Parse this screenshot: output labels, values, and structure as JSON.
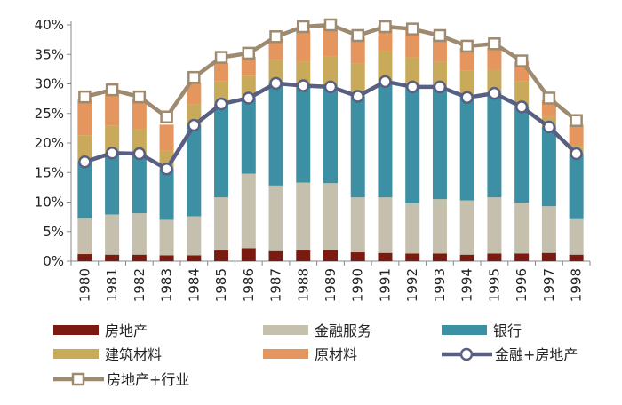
{
  "chart_data": {
    "type": "bar",
    "stacked": true,
    "categories": [
      "1980",
      "1981",
      "1982",
      "1983",
      "1984",
      "1985",
      "1986",
      "1987",
      "1988",
      "1989",
      "1990",
      "1991",
      "1992",
      "1993",
      "1994",
      "1995",
      "1996",
      "1997",
      "1998"
    ],
    "y_ticks": [
      "0%",
      "5%",
      "10%",
      "15%",
      "20%",
      "25%",
      "30%",
      "35%",
      "40%"
    ],
    "ylim": [
      0,
      40
    ],
    "series": [
      {
        "name": "房地产",
        "kind": "bar",
        "color": "#7b1a10",
        "values": [
          1.2,
          1.1,
          1.1,
          1.0,
          1.0,
          1.8,
          2.2,
          1.7,
          1.8,
          1.9,
          1.5,
          1.4,
          1.3,
          1.3,
          1.1,
          1.3,
          1.3,
          1.4,
          1.1
        ]
      },
      {
        "name": "金融服务",
        "kind": "bar",
        "color": "#c4c0ad",
        "values": [
          6.0,
          6.8,
          7.0,
          6.0,
          6.6,
          9.0,
          12.6,
          11.1,
          11.5,
          11.3,
          9.3,
          9.4,
          8.5,
          9.2,
          9.2,
          9.5,
          8.6,
          7.9,
          6.0
        ]
      },
      {
        "name": "银行",
        "kind": "bar",
        "color": "#3d8fa3",
        "values": [
          9.6,
          10.4,
          10.1,
          8.6,
          15.4,
          15.8,
          12.8,
          17.3,
          16.4,
          16.3,
          17.1,
          19.6,
          19.7,
          19.0,
          17.4,
          17.6,
          16.2,
          13.4,
          11.1
        ]
      },
      {
        "name": "建筑材料",
        "kind": "bar",
        "color": "#c9aa5a",
        "values": [
          4.5,
          4.6,
          4.2,
          3.1,
          3.6,
          3.9,
          3.8,
          4.0,
          4.0,
          5.1,
          5.5,
          5.1,
          5.0,
          4.2,
          4.5,
          4.0,
          4.3,
          1.8,
          1.5
        ]
      },
      {
        "name": "原材料",
        "kind": "bar",
        "color": "#e4965e",
        "values": [
          6.0,
          5.8,
          5.0,
          4.4,
          3.6,
          3.0,
          3.2,
          3.6,
          5.3,
          5.4,
          4.6,
          4.5,
          4.9,
          4.2,
          3.9,
          3.8,
          3.4,
          2.7,
          3.4
        ]
      },
      {
        "name": "金融+房地产",
        "kind": "line",
        "color": "#585f82",
        "values": [
          16.8,
          18.3,
          18.2,
          15.6,
          23.0,
          26.6,
          27.6,
          30.1,
          29.7,
          29.5,
          27.9,
          30.4,
          29.5,
          29.5,
          27.7,
          28.4,
          26.1,
          22.7,
          18.2
        ]
      },
      {
        "name": "房地产+行业",
        "kind": "line",
        "color": "#9e8a6e",
        "values": [
          27.8,
          29.0,
          27.8,
          24.4,
          31.1,
          34.5,
          35.2,
          38.0,
          39.7,
          40.0,
          38.2,
          39.7,
          39.3,
          38.2,
          36.4,
          36.8,
          33.9,
          27.6,
          23.8
        ]
      }
    ]
  }
}
